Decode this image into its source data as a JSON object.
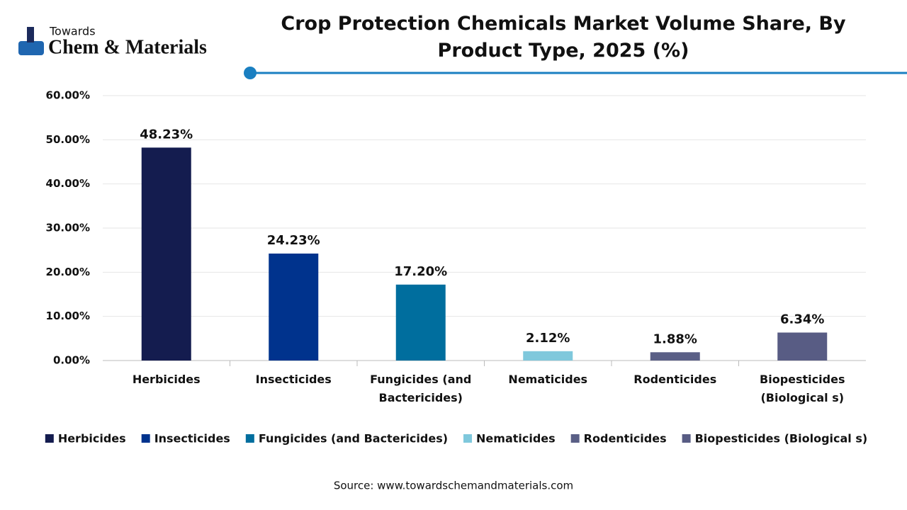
{
  "logo": {
    "top": "Towards",
    "main": "Chem & Materials"
  },
  "chart_data": {
    "type": "bar",
    "title": "Crop Protection Chemicals Market Volume Share, By Product Type, 2025 (%)",
    "categories": [
      "Herbicides",
      "Insecticides",
      "Fungicides (and Bactericides)",
      "Nematicides",
      "Rodenticides",
      "Biopesticides (Biological s)"
    ],
    "values": [
      48.23,
      24.23,
      17.2,
      2.12,
      1.88,
      6.34
    ],
    "value_labels": [
      "48.23%",
      "24.23%",
      "17.20%",
      "2.12%",
      "1.88%",
      "6.34%"
    ],
    "colors": [
      "#141c4f",
      "#00338d",
      "#006e9e",
      "#7fc8dc",
      "#5a5f86",
      "#585c84"
    ],
    "ylim": [
      0,
      60
    ],
    "yticks": [
      {
        "value": 0,
        "label": "0.00%"
      },
      {
        "value": 10,
        "label": "10.00%"
      },
      {
        "value": 20,
        "label": "20.00%"
      },
      {
        "value": 30,
        "label": "30.00%"
      },
      {
        "value": 40,
        "label": "40.00%"
      },
      {
        "value": 50,
        "label": "50.00%"
      },
      {
        "value": 60,
        "label": "60.00%"
      }
    ],
    "grid": true,
    "legend": "bottom"
  },
  "source": "Source: www.towardschemandmaterials.com"
}
